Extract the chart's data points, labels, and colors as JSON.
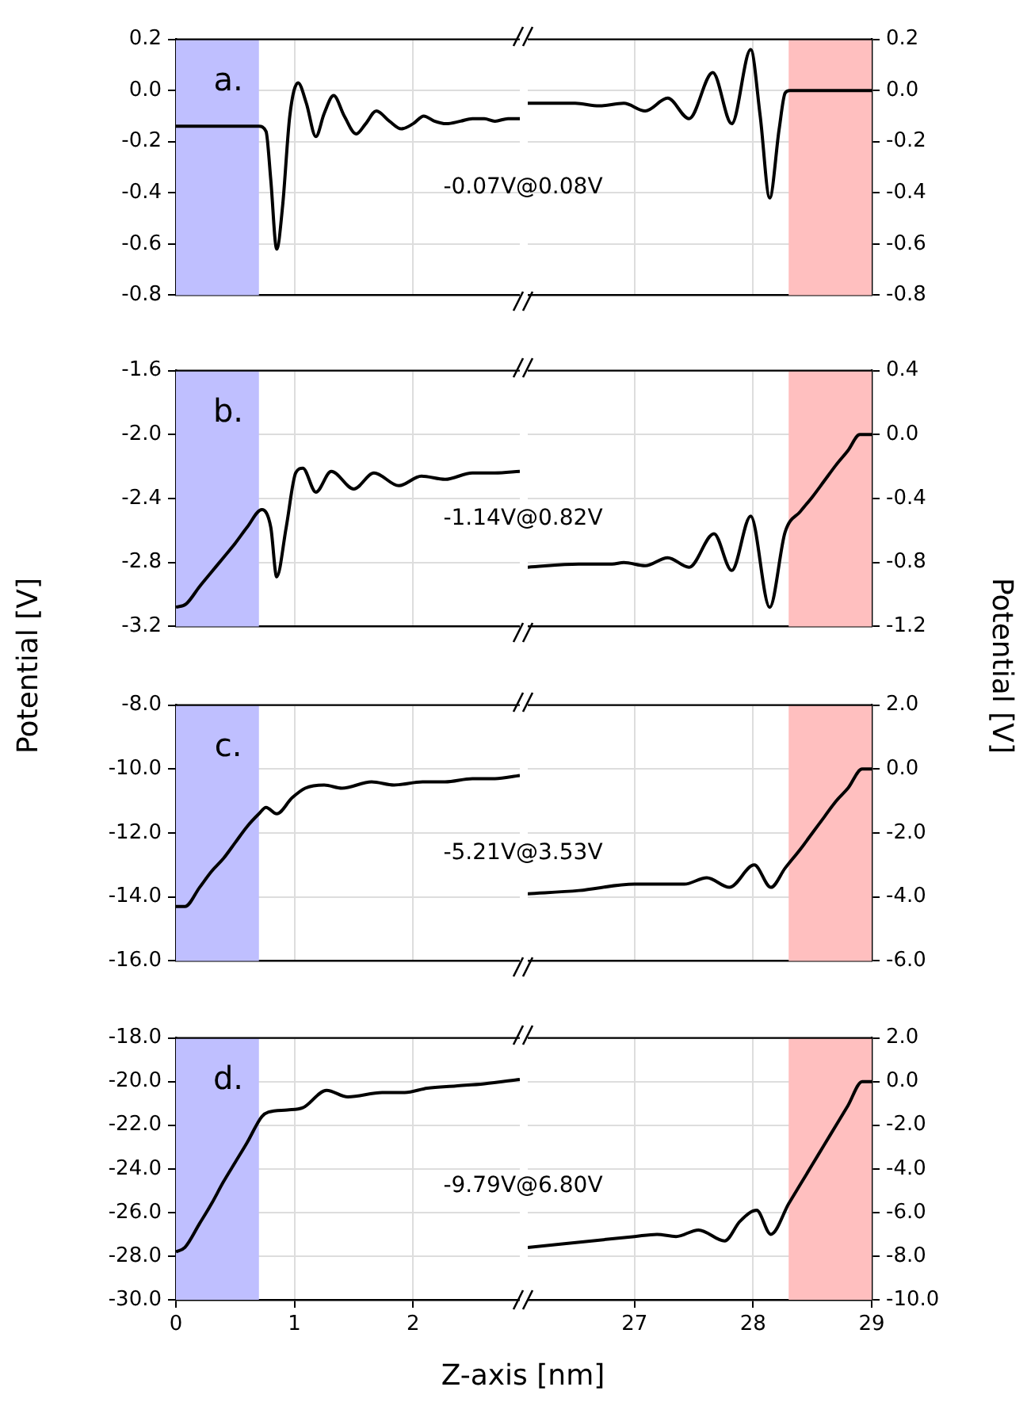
{
  "chart_data": [
    {
      "type": "line",
      "annotations": [
        "a.",
        "-0.07V@0.08V"
      ],
      "xlim": [
        0,
        2.9
      ],
      "xticks": [
        0,
        1,
        2
      ],
      "ylim": [
        -0.8,
        0.2
      ],
      "yticks": [
        -0.8,
        -0.6,
        -0.4,
        -0.2,
        {
          "value": 0,
          "label": "0.0"
        },
        0.2
      ],
      "tick_labels": "y",
      "grid": true,
      "marker": "none",
      "bands": [
        {
          "axis": "x",
          "from": 0,
          "to": 0.7,
          "color": "#bfbfff"
        }
      ],
      "color": "#000000",
      "x": [
        0,
        0.7,
        0.76,
        0.8,
        0.85,
        0.9,
        0.96,
        1.03,
        1.1,
        1.18,
        1.25,
        1.33,
        1.42,
        1.52,
        1.6,
        1.69,
        1.8,
        1.9,
        2.0,
        2.09,
        2.18,
        2.28,
        2.4,
        2.5,
        2.6,
        2.69,
        2.8,
        2.9
      ],
      "values": [
        -0.14,
        -0.14,
        -0.16,
        -0.35,
        -0.62,
        -0.45,
        -0.1,
        0.03,
        -0.05,
        -0.18,
        -0.09,
        -0.02,
        -0.1,
        -0.17,
        -0.13,
        -0.08,
        -0.12,
        -0.15,
        -0.13,
        -0.1,
        -0.12,
        -0.13,
        -0.12,
        -0.11,
        -0.11,
        -0.12,
        -0.11,
        -0.11
      ]
    },
    {
      "type": "line",
      "xlim": [
        26.1,
        29
      ],
      "xticks": [
        27,
        28,
        29
      ],
      "ylim": [
        -0.8,
        0.2
      ],
      "yticks": [
        -0.8,
        -0.6,
        -0.4,
        -0.2,
        {
          "value": 0,
          "label": "0.0"
        },
        0.2
      ],
      "tick_labels": "y",
      "grid": true,
      "marker": "none",
      "bands": [
        {
          "axis": "x",
          "from": 28.3,
          "to": 29,
          "color": "#ffbfbf"
        }
      ],
      "color": "#000000",
      "x": [
        26.1,
        26.3,
        26.5,
        26.7,
        26.91,
        27.09,
        27.28,
        27.46,
        27.66,
        27.82,
        27.98,
        28.06,
        28.14,
        28.22,
        28.27,
        28.31,
        29
      ],
      "values": [
        -0.05,
        -0.05,
        -0.05,
        -0.06,
        -0.05,
        -0.08,
        -0.03,
        -0.11,
        0.07,
        -0.13,
        0.16,
        -0.1,
        -0.42,
        -0.15,
        -0.01,
        0,
        0
      ]
    },
    {
      "type": "line",
      "annotations": [
        "b.",
        "-1.14V@0.82V"
      ],
      "ylabel": "Potential [V]",
      "xlim": [
        0,
        2.9
      ],
      "xticks": [
        0,
        1,
        2
      ],
      "ylim": [
        -3.2,
        -1.6
      ],
      "yticks": [
        -3.2,
        -2.8,
        -2.4,
        {
          "value": -2,
          "label": "-2.0"
        },
        -1.6
      ],
      "tick_labels": "y",
      "grid": true,
      "marker": "none",
      "bands": [
        {
          "axis": "x",
          "from": 0,
          "to": 0.7,
          "color": "#bfbfff"
        }
      ],
      "color": "#000000",
      "x": [
        0,
        0.085,
        0.2,
        0.3,
        0.4,
        0.5,
        0.6,
        0.725,
        0.8,
        0.85,
        0.93,
        1.01,
        1.07,
        1.18,
        1.31,
        1.5,
        1.67,
        1.88,
        2.07,
        2.27,
        2.5,
        2.69,
        2.9
      ],
      "values": [
        -3.08,
        -3.06,
        -2.95,
        -2.86,
        -2.77,
        -2.68,
        -2.58,
        -2.47,
        -2.58,
        -2.89,
        -2.58,
        -2.24,
        -2.21,
        -2.36,
        -2.23,
        -2.34,
        -2.24,
        -2.32,
        -2.26,
        -2.28,
        -2.24,
        -2.24,
        -2.23
      ]
    },
    {
      "type": "line",
      "ylabel": "Potential [V]",
      "xlim": [
        26.1,
        29
      ],
      "xticks": [
        27,
        28,
        29
      ],
      "ylim": [
        -1.2,
        0.4
      ],
      "yticks": [
        -1.2,
        -0.8,
        -0.4,
        {
          "value": 0,
          "label": "0.0"
        },
        0.4
      ],
      "tick_labels": "y",
      "grid": true,
      "marker": "none",
      "bands": [
        {
          "axis": "x",
          "from": 28.3,
          "to": 29,
          "color": "#ffbfbf"
        }
      ],
      "color": "#000000",
      "x": [
        26.1,
        26.53,
        26.81,
        26.91,
        27.09,
        27.28,
        27.46,
        27.67,
        27.82,
        27.98,
        28.14,
        28.27,
        28.4,
        28.5,
        28.6,
        28.7,
        28.8,
        28.9,
        29
      ],
      "values": [
        -0.83,
        -0.81,
        -0.81,
        -0.8,
        -0.82,
        -0.77,
        -0.83,
        -0.62,
        -0.85,
        -0.51,
        -1.08,
        -0.61,
        -0.48,
        -0.39,
        -0.29,
        -0.19,
        -0.1,
        0,
        0
      ]
    },
    {
      "type": "line",
      "annotations": [
        "c.",
        "-5.21V@3.53V"
      ],
      "xlim": [
        0,
        2.9
      ],
      "xticks": [
        0,
        1,
        2
      ],
      "ylim": [
        -16,
        -8
      ],
      "yticks": [
        {
          "value": -16,
          "label": "-16.0"
        },
        {
          "value": -14,
          "label": "-14.0"
        },
        {
          "value": -12,
          "label": "-12.0"
        },
        {
          "value": -10,
          "label": "-10.0"
        },
        {
          "value": -8,
          "label": "-8.0"
        }
      ],
      "tick_labels": "y",
      "grid": true,
      "marker": "none",
      "bands": [
        {
          "axis": "x",
          "from": 0,
          "to": 0.7,
          "color": "#bfbfff"
        }
      ],
      "color": "#000000",
      "x": [
        0,
        0.076,
        0.2,
        0.3,
        0.4,
        0.5,
        0.6,
        0.7,
        0.76,
        0.85,
        0.98,
        1.09,
        1.25,
        1.4,
        1.65,
        1.84,
        2.08,
        2.27,
        2.5,
        2.69,
        2.9
      ],
      "values": [
        -14.3,
        -14.3,
        -13.7,
        -13.2,
        -12.8,
        -12.3,
        -11.8,
        -11.4,
        -11.2,
        -11.4,
        -10.9,
        -10.6,
        -10.5,
        -10.6,
        -10.4,
        -10.5,
        -10.4,
        -10.4,
        -10.3,
        -10.3,
        -10.2
      ]
    },
    {
      "type": "line",
      "xlim": [
        26.1,
        29
      ],
      "xticks": [
        27,
        28,
        29
      ],
      "ylim": [
        -6,
        2
      ],
      "yticks": [
        {
          "value": -6,
          "label": "-6.0"
        },
        {
          "value": -4,
          "label": "-4.0"
        },
        {
          "value": -2,
          "label": "-2.0"
        },
        {
          "value": 0,
          "label": "0.0"
        },
        {
          "value": 2,
          "label": "2.0"
        }
      ],
      "tick_labels": "y",
      "grid": true,
      "marker": "none",
      "bands": [
        {
          "axis": "x",
          "from": 28.3,
          "to": 29,
          "color": "#ffbfbf"
        }
      ],
      "color": "#000000",
      "x": [
        26.1,
        26.53,
        27,
        27.28,
        27.42,
        27.61,
        27.8,
        28.01,
        28.15,
        28.27,
        28.4,
        28.5,
        28.6,
        28.7,
        28.8,
        28.92,
        29
      ],
      "values": [
        -3.9,
        -3.8,
        -3.6,
        -3.6,
        -3.6,
        -3.4,
        -3.7,
        -3.0,
        -3.7,
        -3.1,
        -2.5,
        -2.0,
        -1.5,
        -1.0,
        -0.6,
        0,
        0
      ]
    },
    {
      "type": "line",
      "annotations": [
        "d.",
        "-9.79V@6.80V"
      ],
      "xlabel": "Z-axis [nm]",
      "xlim": [
        0,
        2.9
      ],
      "xticks": [
        0,
        1,
        2
      ],
      "ylim": [
        -30,
        -18
      ],
      "yticks": [
        {
          "value": -30,
          "label": "-30.0"
        },
        {
          "value": -28,
          "label": "-28.0"
        },
        {
          "value": -26,
          "label": "-26.0"
        },
        {
          "value": -24,
          "label": "-24.0"
        },
        {
          "value": -22,
          "label": "-22.0"
        },
        {
          "value": -20,
          "label": "-20.0"
        },
        {
          "value": -18,
          "label": "-18.0"
        }
      ],
      "grid": true,
      "marker": "none",
      "bands": [
        {
          "axis": "x",
          "from": 0,
          "to": 0.7,
          "color": "#bfbfff"
        }
      ],
      "color": "#000000",
      "x": [
        0,
        0.076,
        0.2,
        0.3,
        0.4,
        0.5,
        0.6,
        0.725,
        0.78,
        0.94,
        1.07,
        1.27,
        1.45,
        1.74,
        1.93,
        2.12,
        2.36,
        2.6,
        2.9
      ],
      "values": [
        -27.8,
        -27.6,
        -26.5,
        -25.6,
        -24.6,
        -23.7,
        -22.8,
        -21.6,
        -21.4,
        -21.3,
        -21.2,
        -20.4,
        -20.7,
        -20.5,
        -20.5,
        -20.3,
        -20.2,
        -20.1,
        -19.9
      ]
    },
    {
      "type": "line",
      "xlim": [
        26.1,
        29
      ],
      "xticks": [
        27,
        28,
        29
      ],
      "ylim": [
        -10,
        2
      ],
      "yticks": [
        {
          "value": -10,
          "label": "-10.0"
        },
        {
          "value": -8,
          "label": "-8.0"
        },
        {
          "value": -6,
          "label": "-6.0"
        },
        {
          "value": -4,
          "label": "-4.0"
        },
        {
          "value": -2,
          "label": "-2.0"
        },
        {
          "value": 0,
          "label": "0.0"
        },
        {
          "value": 2,
          "label": "2.0"
        }
      ],
      "grid": true,
      "marker": "none",
      "bands": [
        {
          "axis": "x",
          "from": 28.3,
          "to": 29,
          "color": "#ffbfbf"
        }
      ],
      "color": "#000000",
      "x": [
        26.1,
        27,
        27.19,
        27.35,
        27.54,
        27.76,
        27.89,
        28.03,
        28.15,
        28.3,
        28.4,
        28.5,
        28.6,
        28.7,
        28.8,
        28.92,
        29
      ],
      "values": [
        -7.6,
        -7.1,
        -7.0,
        -7.1,
        -6.8,
        -7.3,
        -6.4,
        -5.9,
        -7.0,
        -5.6,
        -4.7,
        -3.8,
        -2.9,
        -2.0,
        -1.1,
        0,
        0
      ]
    }
  ]
}
